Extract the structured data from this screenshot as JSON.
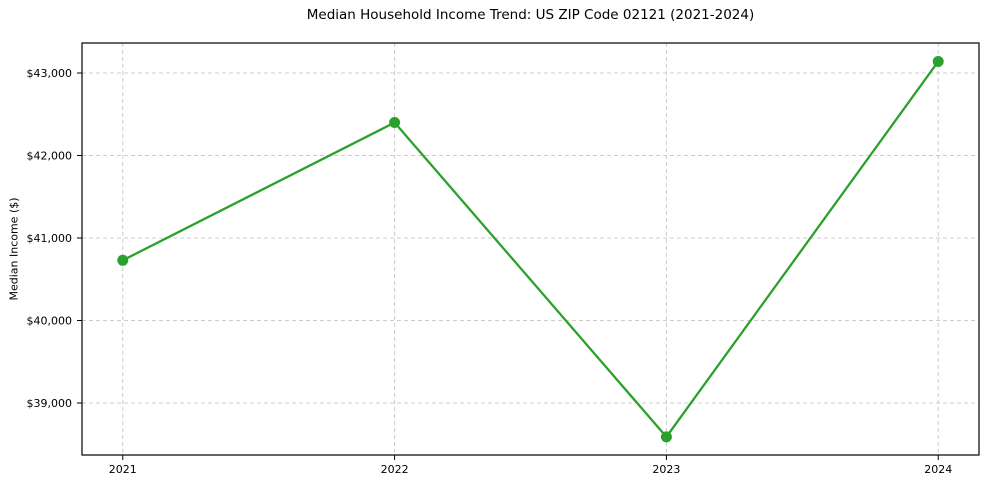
{
  "chart_data": {
    "type": "line",
    "title": "Median Household Income Trend: US ZIP Code 02121 (2021-2024)",
    "xlabel": "",
    "ylabel": "Median Income ($)",
    "x": [
      2021,
      2022,
      2023,
      2024
    ],
    "x_tick_labels": [
      "2021",
      "2022",
      "2023",
      "2024"
    ],
    "series": [
      {
        "name": "Median Household Income",
        "values": [
          40730,
          42400,
          38590,
          43140
        ]
      }
    ],
    "y_ticks": [
      39000,
      40000,
      41000,
      42000,
      43000
    ],
    "y_tick_labels": [
      "$39,000",
      "$40,000",
      "$41,000",
      "$42,000",
      "$43,000"
    ],
    "xlim": [
      2020.85,
      2024.15
    ],
    "ylim": [
      38370,
      43364
    ],
    "grid": true,
    "grid_style": "dashed",
    "legend": "none",
    "colors": {
      "line": "#2ca02c",
      "marker": "#2ca02c",
      "grid": "#cccccc",
      "axis": "#000000",
      "text": "#000000",
      "background": "#ffffff"
    }
  }
}
